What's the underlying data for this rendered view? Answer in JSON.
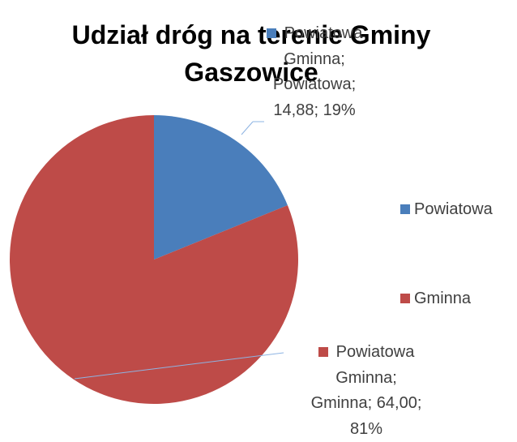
{
  "chart_data": {
    "type": "pie",
    "title": "Udział dróg na terenie Gminy Gaszowice",
    "series_name": "Powiatowa Gminna",
    "categories": [
      "Powiatowa",
      "Gminna"
    ],
    "values": [
      14.88,
      64.0
    ],
    "value_labels": [
      "14,88",
      "64,00"
    ],
    "percentages": [
      {
        "value": 19,
        "label": "19%"
      },
      {
        "value": 81,
        "label": "81%"
      }
    ],
    "label_separator": ";",
    "colors": [
      "#4a7ebb",
      "#be4b48"
    ],
    "legend": "right"
  }
}
